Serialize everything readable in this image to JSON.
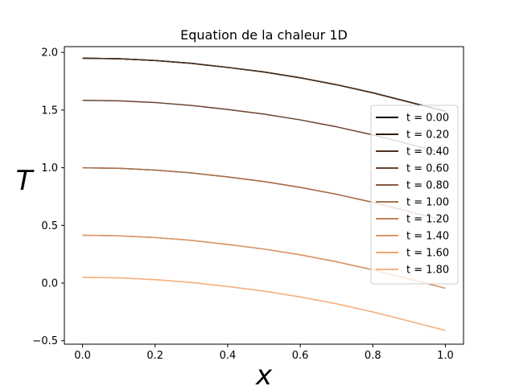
{
  "chart_data": {
    "type": "line",
    "title": "Equation de la chaleur 1D",
    "xlabel": "x",
    "ylabel": "T",
    "xlim": [
      -0.05,
      1.05
    ],
    "ylim": [
      -0.53,
      2.05
    ],
    "xticks": [
      "0.0",
      "0.2",
      "0.4",
      "0.6",
      "0.8",
      "1.0"
    ],
    "yticks": [
      "−0.5",
      "0.0",
      "0.5",
      "1.0",
      "1.5",
      "2.0"
    ],
    "grid": false,
    "legend_position": "center-right",
    "x": [
      0.0,
      0.1,
      0.2,
      0.3,
      0.4,
      0.5,
      0.6,
      0.7,
      0.8,
      0.9,
      1.0
    ],
    "series": [
      {
        "name": "t = 0.00",
        "color": "#000000",
        "values": [
          1.95,
          1.945,
          1.93,
          1.905,
          1.87,
          1.83,
          1.78,
          1.72,
          1.65,
          1.57,
          1.49
        ]
      },
      {
        "name": "t = 0.20",
        "color": "#2a1b11",
        "values": [
          1.95,
          1.945,
          1.93,
          1.905,
          1.87,
          1.83,
          1.78,
          1.72,
          1.65,
          1.57,
          1.49
        ]
      },
      {
        "name": "t = 0.40",
        "color": "#4a2f1e",
        "values": [
          1.95,
          1.945,
          1.93,
          1.905,
          1.87,
          1.83,
          1.78,
          1.72,
          1.65,
          1.57,
          1.49
        ]
      },
      {
        "name": "t = 0.60",
        "color": "#6b4430",
        "values": [
          1.585,
          1.58,
          1.565,
          1.54,
          1.505,
          1.465,
          1.415,
          1.355,
          1.285,
          1.205,
          1.125
        ]
      },
      {
        "name": "t = 0.80",
        "color": "#8b5a3e",
        "values": [
          1.0,
          0.995,
          0.98,
          0.955,
          0.92,
          0.88,
          0.83,
          0.77,
          0.7,
          0.62,
          0.54
        ]
      },
      {
        "name": "t = 1.00",
        "color": "#a8704e",
        "values": [
          1.0,
          0.995,
          0.98,
          0.955,
          0.92,
          0.88,
          0.83,
          0.77,
          0.7,
          0.62,
          0.54
        ]
      },
      {
        "name": "t = 1.20",
        "color": "#c4835c",
        "values": [
          0.415,
          0.41,
          0.395,
          0.37,
          0.335,
          0.295,
          0.245,
          0.185,
          0.115,
          0.035,
          -0.045
        ]
      },
      {
        "name": "t = 1.40",
        "color": "#dc9567",
        "values": [
          0.415,
          0.41,
          0.395,
          0.37,
          0.335,
          0.295,
          0.245,
          0.185,
          0.115,
          0.035,
          -0.045
        ]
      },
      {
        "name": "t = 1.60",
        "color": "#f1a56f",
        "values": [
          0.05,
          0.045,
          0.03,
          0.005,
          -0.03,
          -0.07,
          -0.12,
          -0.18,
          -0.25,
          -0.33,
          -0.41
        ]
      },
      {
        "name": "t = 1.80",
        "color": "#f7b27f",
        "values": [
          0.05,
          0.045,
          0.03,
          0.005,
          -0.03,
          -0.07,
          -0.12,
          -0.18,
          -0.25,
          -0.33,
          -0.41
        ]
      }
    ]
  }
}
